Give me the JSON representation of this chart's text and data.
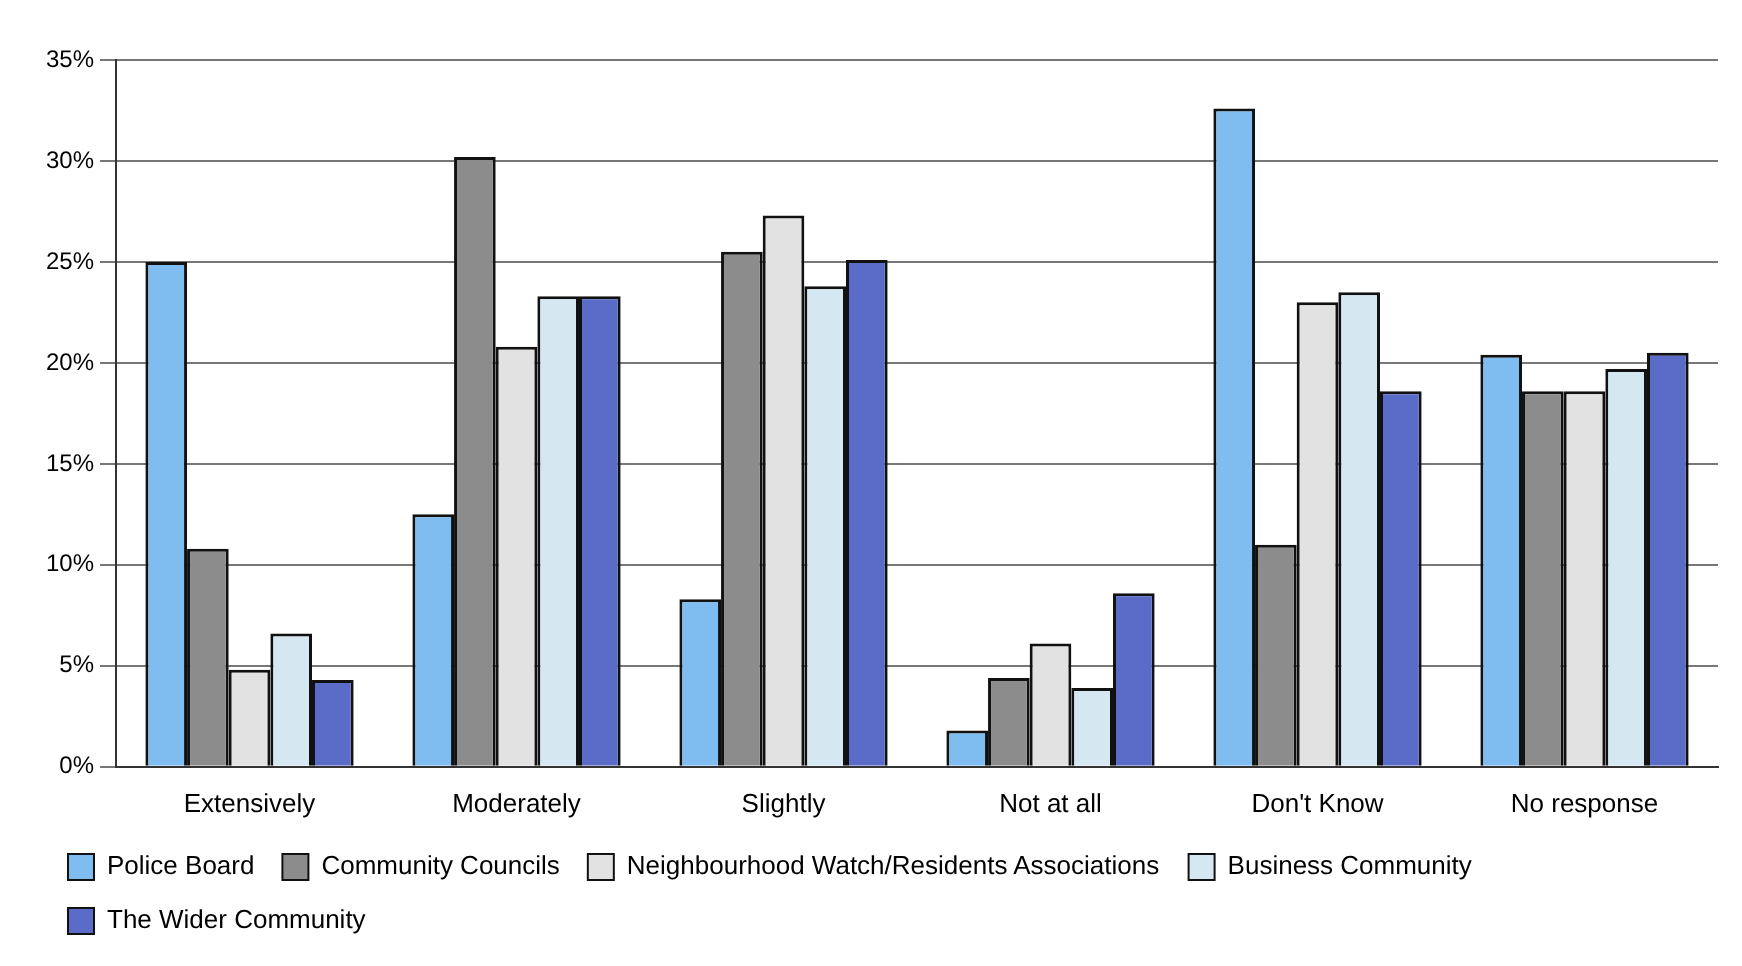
{
  "chart_data": {
    "type": "bar",
    "categories": [
      "Extensively",
      "Moderately",
      "Slightly",
      "Not at all",
      "Don't Know",
      "No response"
    ],
    "series": [
      {
        "name": "Police Board",
        "color": "#7fbcf0",
        "values": [
          25,
          12.5,
          8.3,
          1.8,
          32.6,
          20.4
        ]
      },
      {
        "name": "Community Councils",
        "color": "#8c8c8c",
        "values": [
          10.8,
          30.2,
          25.5,
          4.4,
          11,
          18.6
        ]
      },
      {
        "name": "Neighbourhood Watch/Residents Associations",
        "color": "#e2e2e2",
        "values": [
          4.8,
          20.8,
          27.3,
          6.1,
          23,
          18.6
        ]
      },
      {
        "name": "Business Community",
        "color": "#d5e8f2",
        "values": [
          6.6,
          23.3,
          23.8,
          3.9,
          23.5,
          19.7
        ]
      },
      {
        "name": "The Wider Community",
        "color": "#5a6cc8",
        "values": [
          4.3,
          23.3,
          25.1,
          8.6,
          18.6,
          20.5
        ]
      }
    ],
    "ylim": [
      0,
      35
    ],
    "yticks": [
      {
        "value": 0,
        "label": "0%"
      },
      {
        "value": 5,
        "label": "5%"
      },
      {
        "value": 10,
        "label": "10%"
      },
      {
        "value": 15,
        "label": "15%"
      },
      {
        "value": 20,
        "label": "20%"
      },
      {
        "value": 25,
        "label": "25%"
      },
      {
        "value": 30,
        "label": "30%"
      },
      {
        "value": 35,
        "label": "35%"
      }
    ],
    "grid": "y",
    "legend": "bottom"
  }
}
